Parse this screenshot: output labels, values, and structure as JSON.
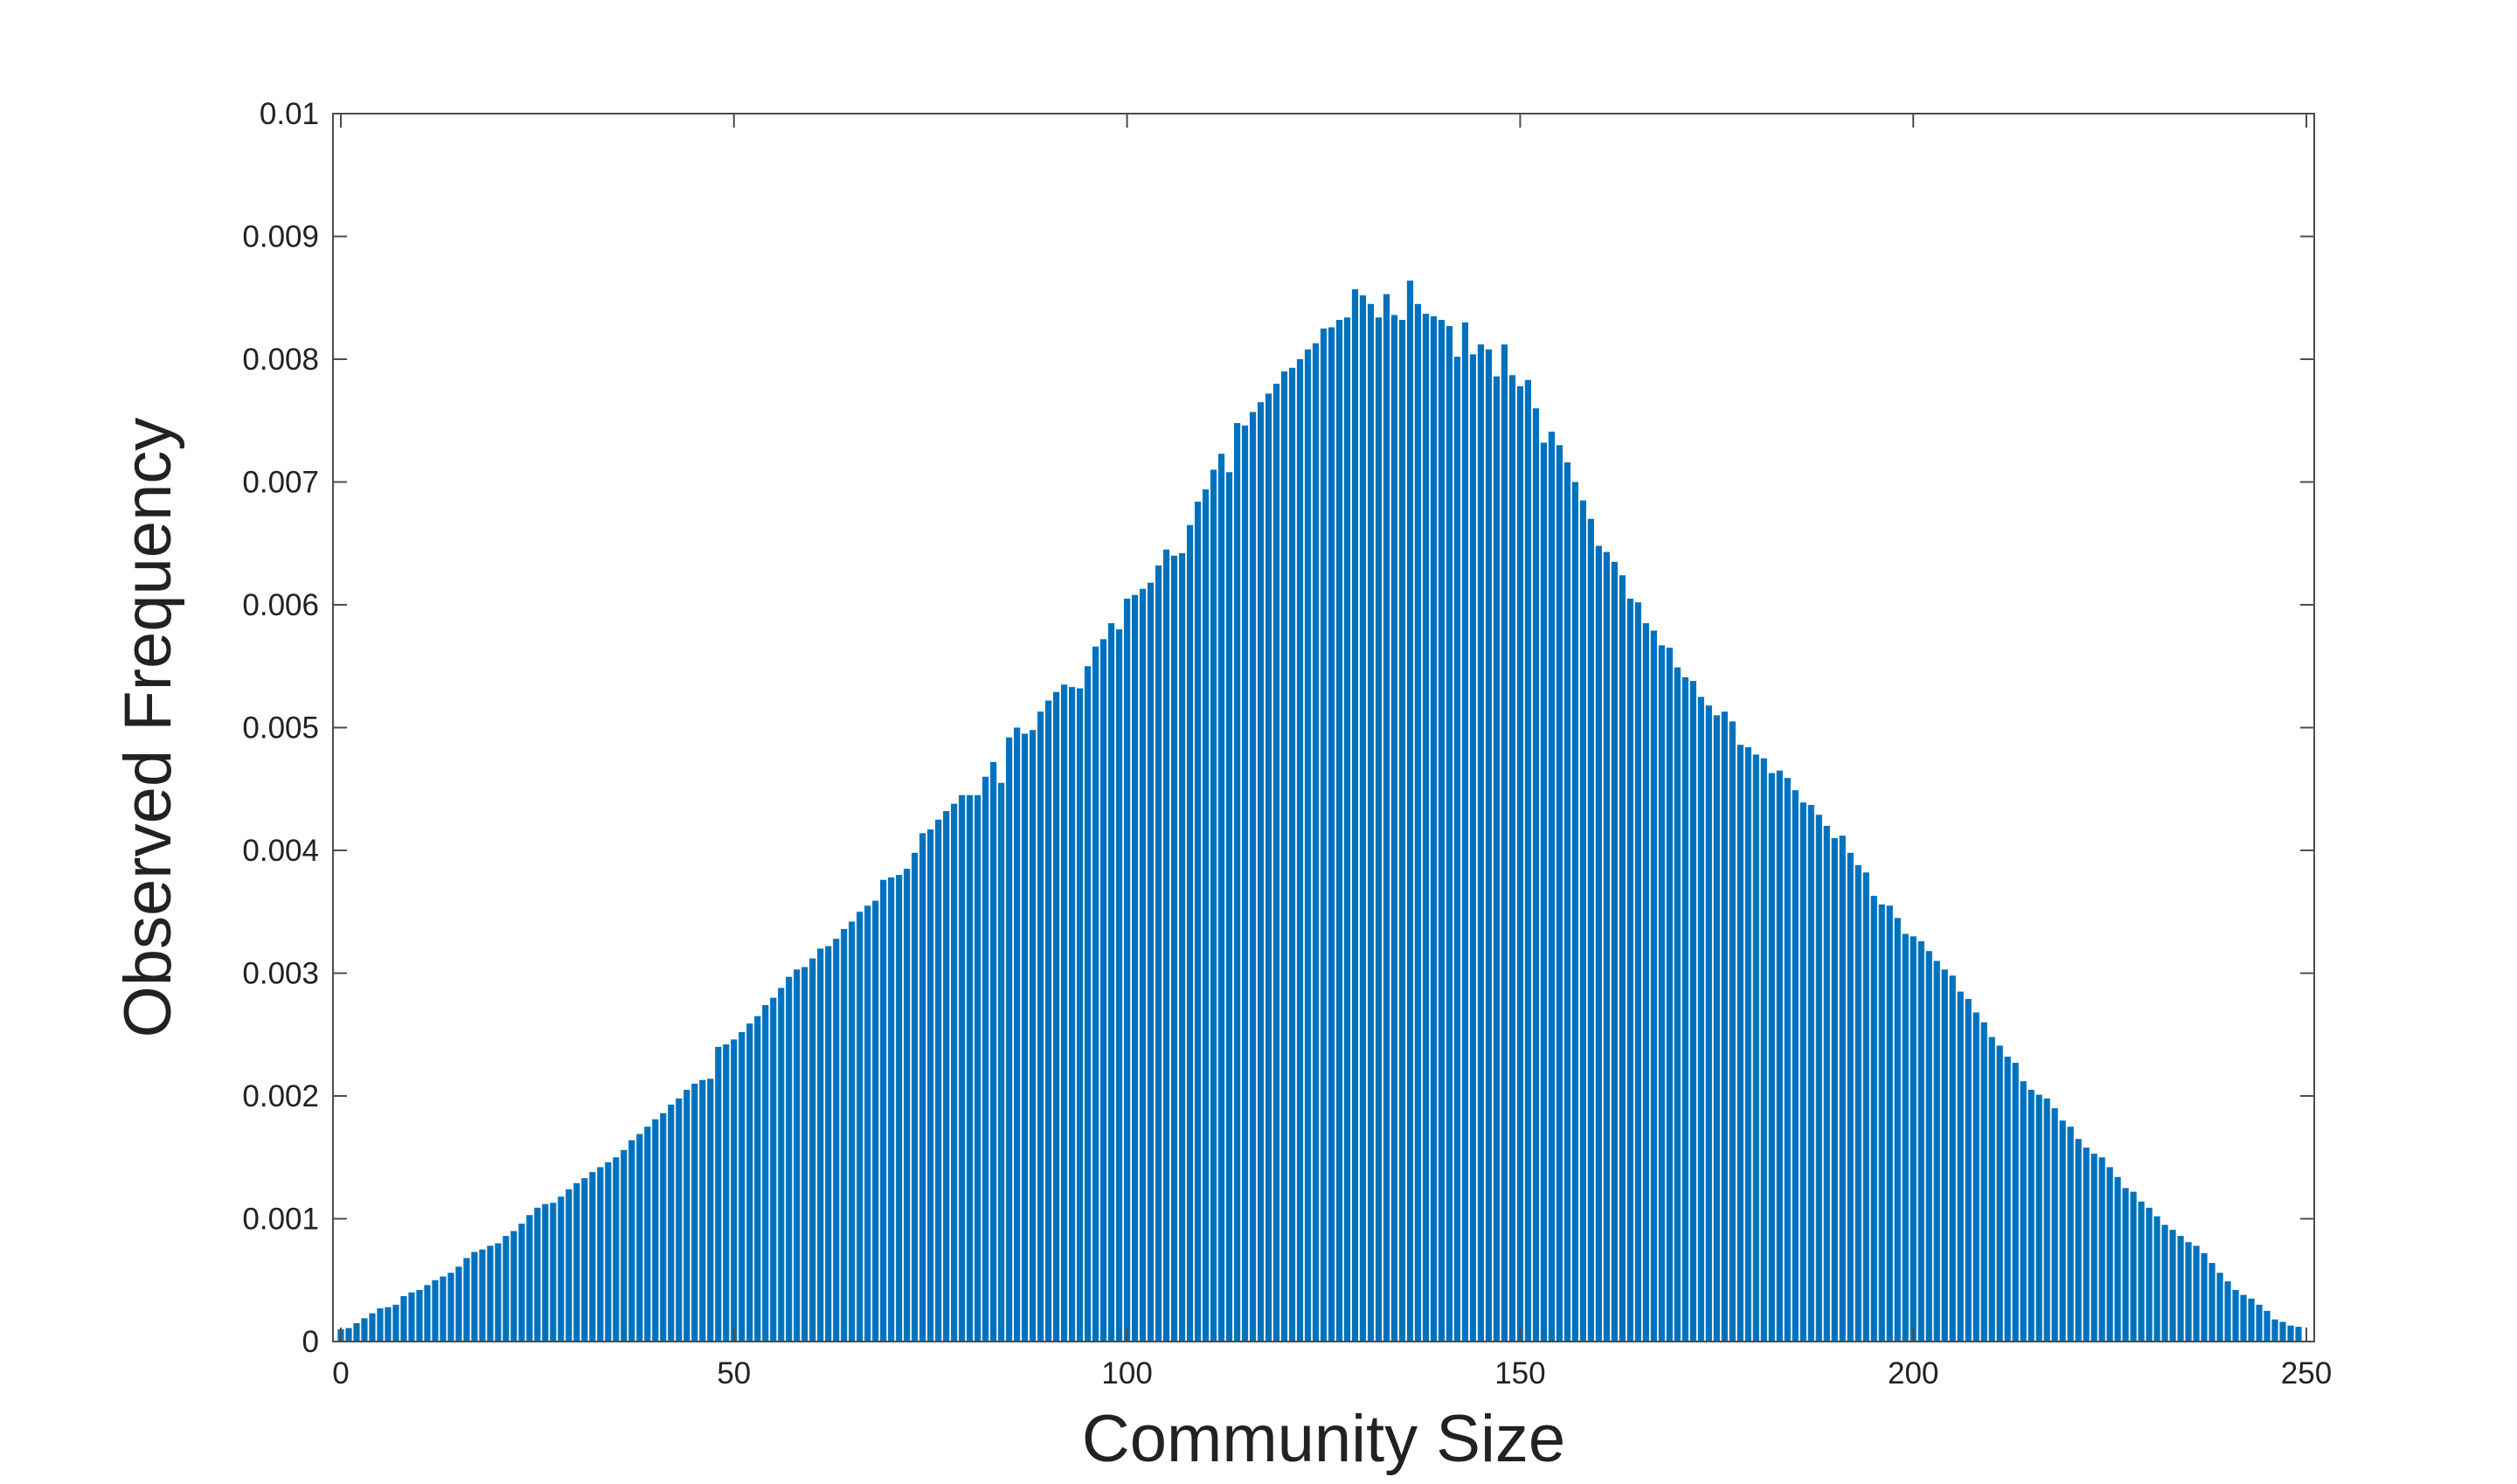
{
  "chart_data": {
    "type": "bar",
    "title": "",
    "xlabel": "Community Size",
    "ylabel": "Observed Frequency",
    "xlim": [
      -1,
      251
    ],
    "ylim": [
      0,
      0.01
    ],
    "x_ticks": [
      0,
      50,
      100,
      150,
      200,
      250
    ],
    "x_tick_labels": [
      "0",
      "50",
      "100",
      "150",
      "200",
      "250"
    ],
    "y_ticks": [
      0,
      0.001,
      0.002,
      0.003,
      0.004,
      0.005,
      0.006,
      0.007,
      0.008,
      0.009,
      0.01
    ],
    "y_tick_labels": [
      "0",
      "0.001",
      "0.002",
      "0.003",
      "0.004",
      "0.005",
      "0.006",
      "0.007",
      "0.008",
      "0.009",
      "0.01"
    ],
    "grid": false,
    "legend": "none",
    "bar_color": "#0072BD",
    "x_start": 0,
    "x_step": 1,
    "values": [
      0.0001,
      0.00011,
      0.00015,
      0.00019,
      0.00023,
      0.00027,
      0.00028,
      0.0003,
      0.00037,
      0.0004,
      0.00042,
      0.00046,
      0.0005,
      0.00053,
      0.00056,
      0.00061,
      0.00068,
      0.00073,
      0.00075,
      0.00078,
      0.0008,
      0.00086,
      0.0009,
      0.00096,
      0.00103,
      0.00109,
      0.00112,
      0.00113,
      0.00118,
      0.00124,
      0.00129,
      0.00133,
      0.00138,
      0.00142,
      0.00146,
      0.0015,
      0.00156,
      0.00164,
      0.00169,
      0.00175,
      0.00181,
      0.00186,
      0.00193,
      0.00198,
      0.00205,
      0.0021,
      0.00213,
      0.00214,
      0.0024,
      0.00242,
      0.00246,
      0.00252,
      0.00259,
      0.00265,
      0.00274,
      0.0028,
      0.00288,
      0.00297,
      0.00303,
      0.00305,
      0.00312,
      0.0032,
      0.00322,
      0.00328,
      0.00336,
      0.00342,
      0.0035,
      0.00355,
      0.00359,
      0.00376,
      0.00378,
      0.0038,
      0.00385,
      0.00398,
      0.00414,
      0.00417,
      0.00425,
      0.00432,
      0.00438,
      0.00445,
      0.00445,
      0.00445,
      0.0046,
      0.00472,
      0.00455,
      0.00492,
      0.005,
      0.00495,
      0.00498,
      0.00513,
      0.00522,
      0.00529,
      0.00535,
      0.00533,
      0.00532,
      0.0055,
      0.00566,
      0.00572,
      0.00585,
      0.0058,
      0.00605,
      0.00608,
      0.00613,
      0.00618,
      0.00632,
      0.00645,
      0.0064,
      0.00642,
      0.00665,
      0.00684,
      0.00694,
      0.0071,
      0.00723,
      0.00708,
      0.00748,
      0.00746,
      0.00757,
      0.00765,
      0.00772,
      0.0078,
      0.0079,
      0.00793,
      0.008,
      0.00808,
      0.00813,
      0.00825,
      0.00826,
      0.00832,
      0.00834,
      0.00857,
      0.00852,
      0.00845,
      0.00834,
      0.00853,
      0.00836,
      0.00832,
      0.00864,
      0.00845,
      0.00837,
      0.00835,
      0.00832,
      0.00827,
      0.00802,
      0.0083,
      0.00804,
      0.00812,
      0.00808,
      0.00786,
      0.00812,
      0.00787,
      0.00778,
      0.00783,
      0.0076,
      0.00732,
      0.00741,
      0.0073,
      0.00716,
      0.007,
      0.00685,
      0.0067,
      0.00648,
      0.00643,
      0.00635,
      0.00624,
      0.00605,
      0.00602,
      0.00585,
      0.00579,
      0.00567,
      0.00565,
      0.00549,
      0.00541,
      0.00538,
      0.00525,
      0.00518,
      0.0051,
      0.00513,
      0.00505,
      0.00486,
      0.00484,
      0.00478,
      0.00475,
      0.00463,
      0.00465,
      0.00459,
      0.00449,
      0.00439,
      0.00437,
      0.00429,
      0.0042,
      0.0041,
      0.00412,
      0.00398,
      0.00388,
      0.00382,
      0.00363,
      0.00356,
      0.00355,
      0.00345,
      0.00332,
      0.0033,
      0.00326,
      0.00318,
      0.0031,
      0.00303,
      0.00298,
      0.00285,
      0.00279,
      0.00268,
      0.0026,
      0.00248,
      0.00241,
      0.00232,
      0.00227,
      0.00212,
      0.00205,
      0.00201,
      0.00198,
      0.0019,
      0.0018,
      0.00175,
      0.00165,
      0.00158,
      0.00153,
      0.0015,
      0.00142,
      0.00134,
      0.00125,
      0.00122,
      0.00114,
      0.00109,
      0.00102,
      0.00095,
      0.00091,
      0.00086,
      0.00081,
      0.00078,
      0.00072,
      0.00064,
      0.00056,
      0.00049,
      0.00042,
      0.00038,
      0.00035,
      0.0003,
      0.00025,
      0.00018,
      0.00016,
      0.00013,
      0.00012
    ]
  }
}
